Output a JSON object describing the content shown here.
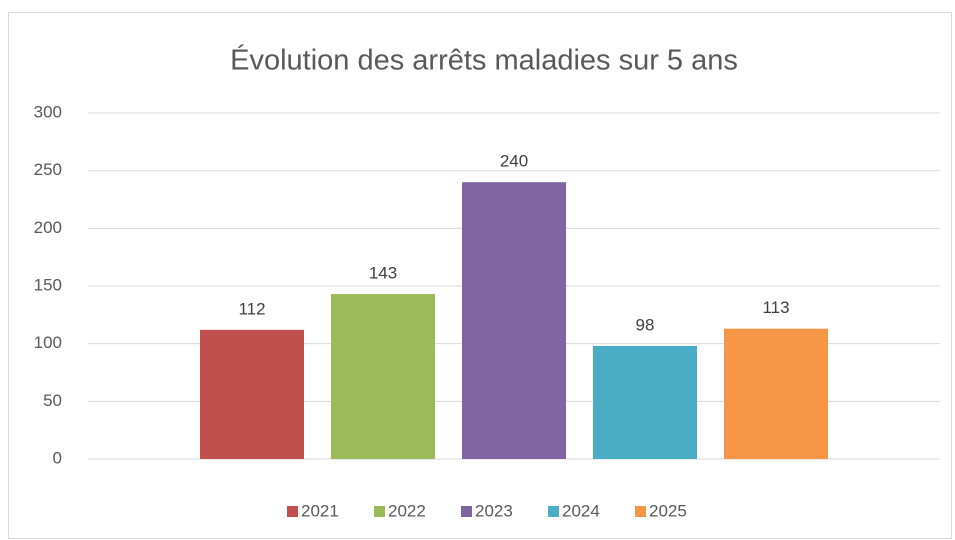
{
  "chart_data": {
    "type": "bar",
    "title": "Évolution des arrêts maladies sur 5 ans",
    "categories": [
      null
    ],
    "series": [
      {
        "name": "2021",
        "color": "#c0504d",
        "values": [
          112
        ]
      },
      {
        "name": "2022",
        "color": "#9bbb59",
        "values": [
          143
        ]
      },
      {
        "name": "2023",
        "color": "#8064a2",
        "values": [
          240
        ]
      },
      {
        "name": "2024",
        "color": "#4bacc6",
        "values": [
          98
        ]
      },
      {
        "name": "2025",
        "color": "#f79646",
        "values": [
          113
        ]
      }
    ],
    "ylim": [
      0,
      300
    ],
    "yticks": [
      0,
      50,
      100,
      150,
      200,
      250,
      300
    ],
    "grid": true,
    "legend": "bottom"
  }
}
